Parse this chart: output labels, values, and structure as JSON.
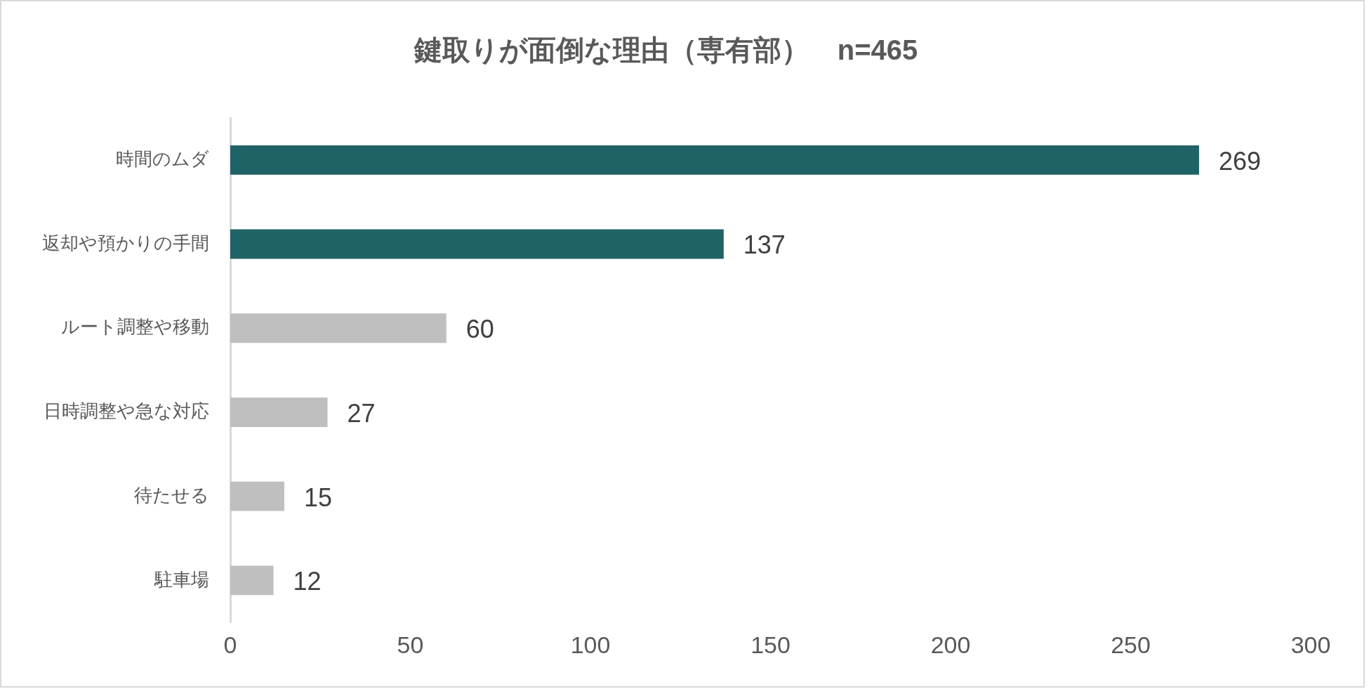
{
  "chart_data": {
    "type": "bar",
    "orientation": "horizontal",
    "title": "鍵取りが面倒な理由（専有部）　n=465",
    "categories": [
      "時間のムダ",
      "返却や預かりの手間",
      "ルート調整や移動",
      "日時調整や急な対応",
      "待たせる",
      "駐車場"
    ],
    "values": [
      269,
      137,
      60,
      27,
      15,
      12
    ],
    "colors": [
      "#206366",
      "#206366",
      "#bfbfbf",
      "#bfbfbf",
      "#bfbfbf",
      "#bfbfbf"
    ],
    "xlim": [
      0,
      300
    ],
    "xticks": [
      0,
      50,
      100,
      150,
      200,
      250,
      300
    ],
    "grid": false,
    "legend": false,
    "data_labels": true
  }
}
